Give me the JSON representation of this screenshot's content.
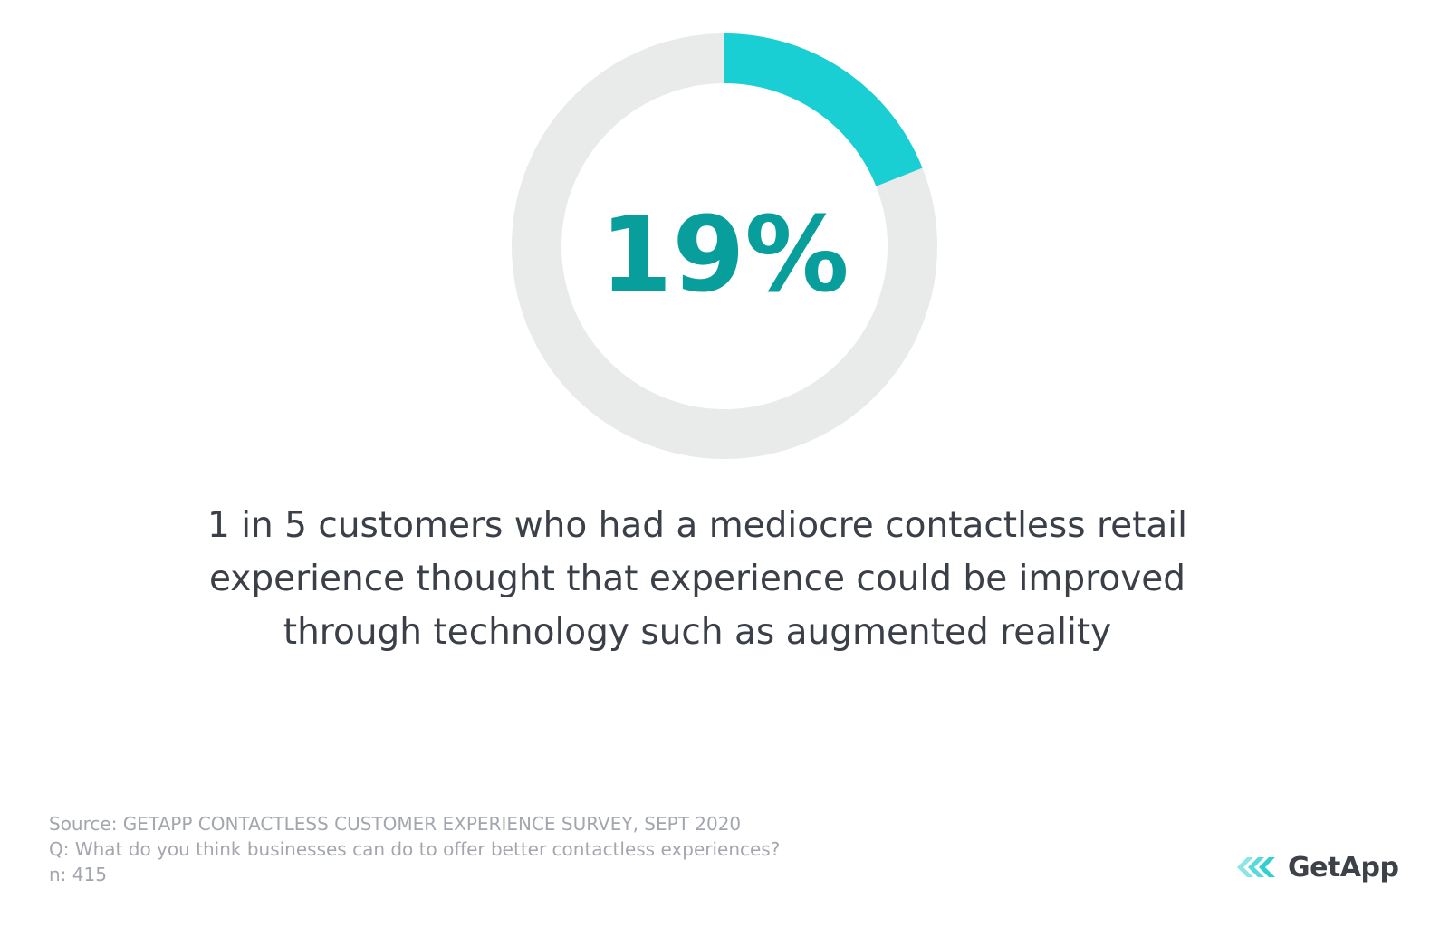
{
  "chart_data": {
    "type": "pie",
    "values": [
      19,
      81
    ],
    "value_label": "19%",
    "colors": {
      "highlight": "#19cfd3",
      "remainder": "#e9eaea",
      "value_text": "#089e9c"
    }
  },
  "headline": {
    "lines": [
      "1 in 5 customers who had a mediocre contactless retail",
      "experience thought that experience could be improved",
      "through technology such as augmented reality"
    ]
  },
  "footer": {
    "source": "Source: GETAPP CONTACTLESS CUSTOMER EXPERIENCE SURVEY, SEPT 2020",
    "question": "Q: What do you think businesses can do to offer better contactless experiences?",
    "sample": "n: 415"
  },
  "brand": {
    "name": "GetApp",
    "icon": "getapp-chevrons-logo",
    "colors": {
      "icon": "#2fd0cf",
      "text": "#3d4148"
    }
  }
}
